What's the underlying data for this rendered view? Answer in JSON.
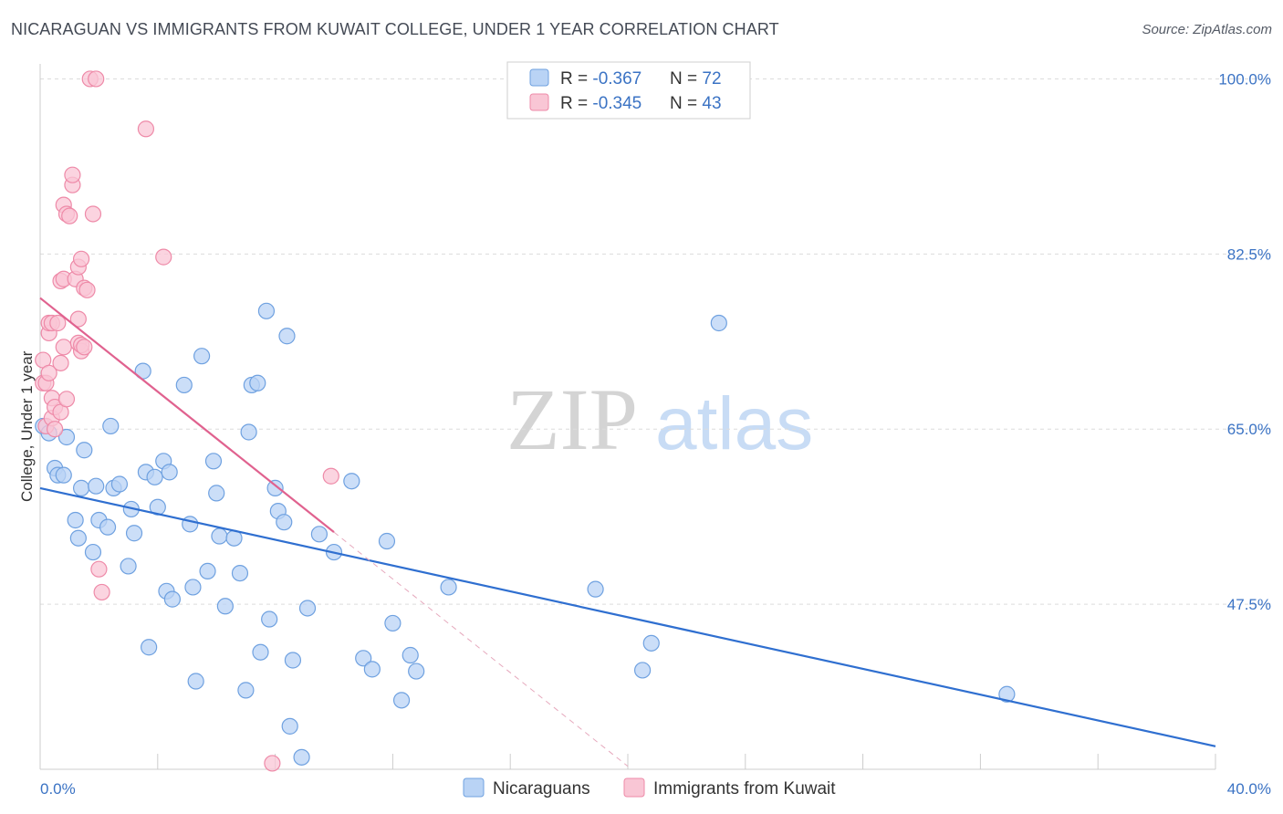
{
  "title": "NICARAGUAN VS IMMIGRANTS FROM KUWAIT COLLEGE, UNDER 1 YEAR CORRELATION CHART",
  "source": "Source: ZipAtlas.com",
  "watermark": {
    "zip": "ZIP",
    "atlas": "atlas"
  },
  "colors": {
    "blue_fill": "#b9d3f5",
    "blue_stroke": "#6fa1e0",
    "blue_line": "#2f6fd0",
    "pink_fill": "#f9c6d5",
    "pink_stroke": "#ee8aa8",
    "pink_line": "#e0628f",
    "tick_text": "#3b73c4",
    "grid": "#dcdcdc"
  },
  "legend": {
    "rows": [
      {
        "r_label": "R = ",
        "r_value": "-0.367",
        "n_label": "N = ",
        "n_value": "72"
      },
      {
        "r_label": "R = ",
        "r_value": "-0.345",
        "n_label": "N = ",
        "n_value": "43"
      }
    ]
  },
  "chart_data": {
    "type": "scatter",
    "title": "NICARAGUAN VS IMMIGRANTS FROM KUWAIT COLLEGE, UNDER 1 YEAR CORRELATION CHART",
    "xlabel": "",
    "ylabel": "College, Under 1 year",
    "xlim": [
      0,
      40
    ],
    "ylim": [
      31,
      101.5
    ],
    "x_tick_labels": [
      "0.0%",
      "40.0%"
    ],
    "y_ticks": [
      47.5,
      65.0,
      82.5,
      100.0
    ],
    "y_tick_labels": [
      "47.5%",
      "65.0%",
      "82.5%",
      "100.0%"
    ],
    "grid": true,
    "series": [
      {
        "name": "Nicaraguans",
        "r": -0.367,
        "n": 72,
        "trend": {
          "x0": 0,
          "y0": 59.1,
          "x1": 40,
          "y1": 33.3
        },
        "points": [
          [
            0.1,
            65.3
          ],
          [
            0.3,
            64.6
          ],
          [
            0.5,
            61.1
          ],
          [
            0.6,
            60.4
          ],
          [
            0.8,
            60.4
          ],
          [
            0.9,
            64.2
          ],
          [
            1.2,
            55.9
          ],
          [
            1.3,
            54.1
          ],
          [
            1.4,
            59.1
          ],
          [
            1.5,
            62.9
          ],
          [
            1.8,
            52.7
          ],
          [
            1.9,
            59.3
          ],
          [
            2.0,
            55.9
          ],
          [
            2.3,
            55.2
          ],
          [
            2.4,
            65.3
          ],
          [
            2.5,
            59.1
          ],
          [
            2.7,
            59.5
          ],
          [
            3.0,
            51.3
          ],
          [
            3.1,
            57.0
          ],
          [
            3.2,
            54.6
          ],
          [
            3.5,
            70.8
          ],
          [
            3.6,
            60.7
          ],
          [
            3.7,
            43.2
          ],
          [
            3.9,
            60.2
          ],
          [
            4.0,
            57.2
          ],
          [
            4.2,
            61.8
          ],
          [
            4.3,
            48.8
          ],
          [
            4.4,
            60.7
          ],
          [
            4.5,
            48.0
          ],
          [
            4.9,
            69.4
          ],
          [
            5.1,
            55.5
          ],
          [
            5.2,
            49.2
          ],
          [
            5.3,
            39.8
          ],
          [
            5.5,
            72.3
          ],
          [
            5.7,
            50.8
          ],
          [
            5.9,
            61.8
          ],
          [
            6.0,
            58.6
          ],
          [
            6.1,
            54.3
          ],
          [
            6.3,
            47.3
          ],
          [
            6.6,
            54.1
          ],
          [
            6.8,
            50.6
          ],
          [
            7.0,
            38.9
          ],
          [
            7.1,
            64.7
          ],
          [
            7.2,
            69.4
          ],
          [
            7.4,
            69.6
          ],
          [
            7.5,
            42.7
          ],
          [
            7.7,
            76.8
          ],
          [
            7.8,
            46.0
          ],
          [
            8.0,
            59.1
          ],
          [
            8.1,
            56.8
          ],
          [
            8.3,
            55.7
          ],
          [
            8.4,
            74.3
          ],
          [
            8.5,
            35.3
          ],
          [
            8.6,
            41.9
          ],
          [
            8.9,
            32.2
          ],
          [
            9.1,
            47.1
          ],
          [
            9.5,
            54.5
          ],
          [
            10.0,
            52.7
          ],
          [
            10.6,
            59.8
          ],
          [
            11.0,
            42.1
          ],
          [
            11.3,
            41.0
          ],
          [
            11.8,
            53.8
          ],
          [
            12.0,
            45.6
          ],
          [
            12.3,
            37.9
          ],
          [
            12.6,
            42.4
          ],
          [
            12.8,
            40.8
          ],
          [
            13.9,
            49.2
          ],
          [
            18.9,
            49.0
          ],
          [
            20.5,
            40.9
          ],
          [
            20.8,
            43.6
          ],
          [
            23.1,
            75.6
          ],
          [
            32.9,
            38.5
          ]
        ]
      },
      {
        "name": "Immigrants from Kuwait",
        "r": -0.345,
        "n": 43,
        "trend": {
          "x0": 0,
          "y0": 78.1,
          "x1": 10.0,
          "y1": 54.7
        },
        "trend_extension": {
          "x0": 10.0,
          "y0": 54.7,
          "x1": 20.0,
          "y1": 31.3
        },
        "points": [
          [
            0.1,
            71.9
          ],
          [
            0.1,
            69.6
          ],
          [
            0.2,
            69.6
          ],
          [
            0.2,
            65.3
          ],
          [
            0.3,
            70.6
          ],
          [
            0.3,
            74.6
          ],
          [
            0.3,
            75.6
          ],
          [
            0.4,
            66.1
          ],
          [
            0.4,
            68.1
          ],
          [
            0.4,
            75.6
          ],
          [
            0.5,
            67.2
          ],
          [
            0.5,
            65.0
          ],
          [
            0.6,
            75.6
          ],
          [
            0.7,
            79.8
          ],
          [
            0.7,
            66.7
          ],
          [
            0.7,
            71.6
          ],
          [
            0.8,
            87.4
          ],
          [
            0.8,
            80.0
          ],
          [
            0.8,
            73.2
          ],
          [
            0.9,
            86.5
          ],
          [
            0.9,
            68.0
          ],
          [
            1.0,
            86.3
          ],
          [
            1.1,
            89.4
          ],
          [
            1.1,
            90.4
          ],
          [
            1.2,
            80.0
          ],
          [
            1.3,
            73.6
          ],
          [
            1.3,
            76.0
          ],
          [
            1.3,
            81.2
          ],
          [
            1.4,
            82.0
          ],
          [
            1.4,
            72.8
          ],
          [
            1.4,
            73.4
          ],
          [
            1.5,
            73.2
          ],
          [
            1.5,
            79.1
          ],
          [
            1.6,
            78.9
          ],
          [
            1.7,
            100.0
          ],
          [
            1.8,
            86.5
          ],
          [
            1.9,
            100.0
          ],
          [
            2.0,
            51.0
          ],
          [
            2.1,
            48.7
          ],
          [
            3.6,
            95.0
          ],
          [
            4.2,
            82.2
          ],
          [
            7.9,
            31.6
          ],
          [
            9.9,
            60.3
          ]
        ]
      }
    ],
    "legend": [
      "Nicaraguans",
      "Immigrants from Kuwait"
    ],
    "legend_position": "top-center"
  }
}
